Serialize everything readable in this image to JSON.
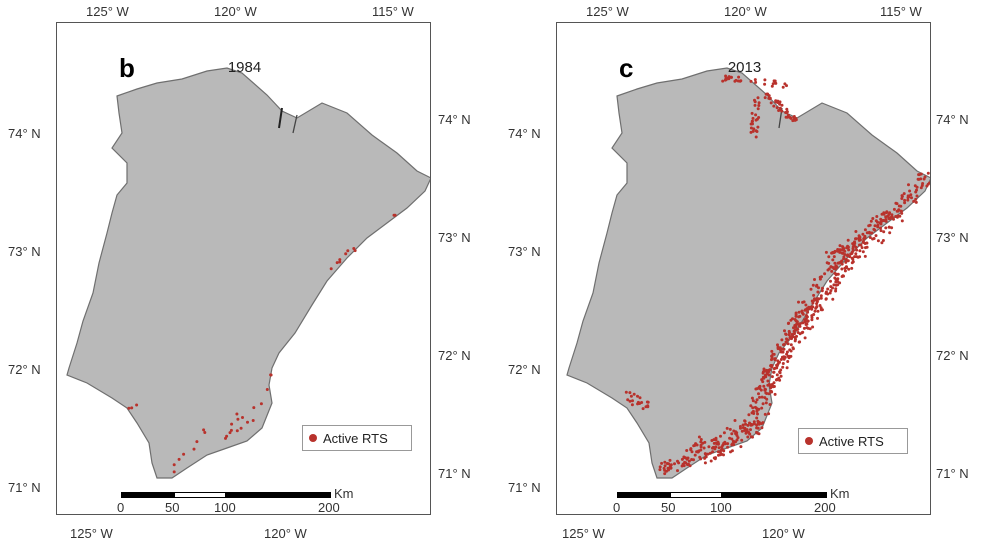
{
  "panels": [
    {
      "id": "b",
      "letter": "b",
      "year": "1984",
      "top_lon_labels": [
        "125° W",
        "120° W",
        "115° W"
      ],
      "bottom_lon_labels": [
        "125° W",
        "120° W"
      ],
      "left_lat_labels": [
        "74° N",
        "73° N",
        "72° N",
        "71° N"
      ],
      "right_lat_labels": [
        "74° N",
        "73° N",
        "72° N",
        "71° N"
      ],
      "legend_label": "Active RTS",
      "scale_labels": [
        "0",
        "50",
        "100",
        "200"
      ],
      "scale_unit": "Km"
    },
    {
      "id": "c",
      "letter": "c",
      "year": "2013",
      "top_lon_labels": [
        "125° W",
        "120° W",
        "115° W"
      ],
      "bottom_lon_labels": [
        "125° W",
        "120° W"
      ],
      "left_lat_labels": [
        "74° N",
        "73° N",
        "72° N",
        "71° N"
      ],
      "right_lat_labels": [
        "74° N",
        "73° N",
        "72° N",
        "71° N"
      ],
      "legend_label": "Active RTS",
      "scale_labels": [
        "0",
        "50",
        "100",
        "200"
      ],
      "scale_unit": "Km"
    }
  ],
  "colors": {
    "land": "#b9b9b9",
    "coast": "#6f6f6f",
    "rts_dot": "#b8322c"
  }
}
